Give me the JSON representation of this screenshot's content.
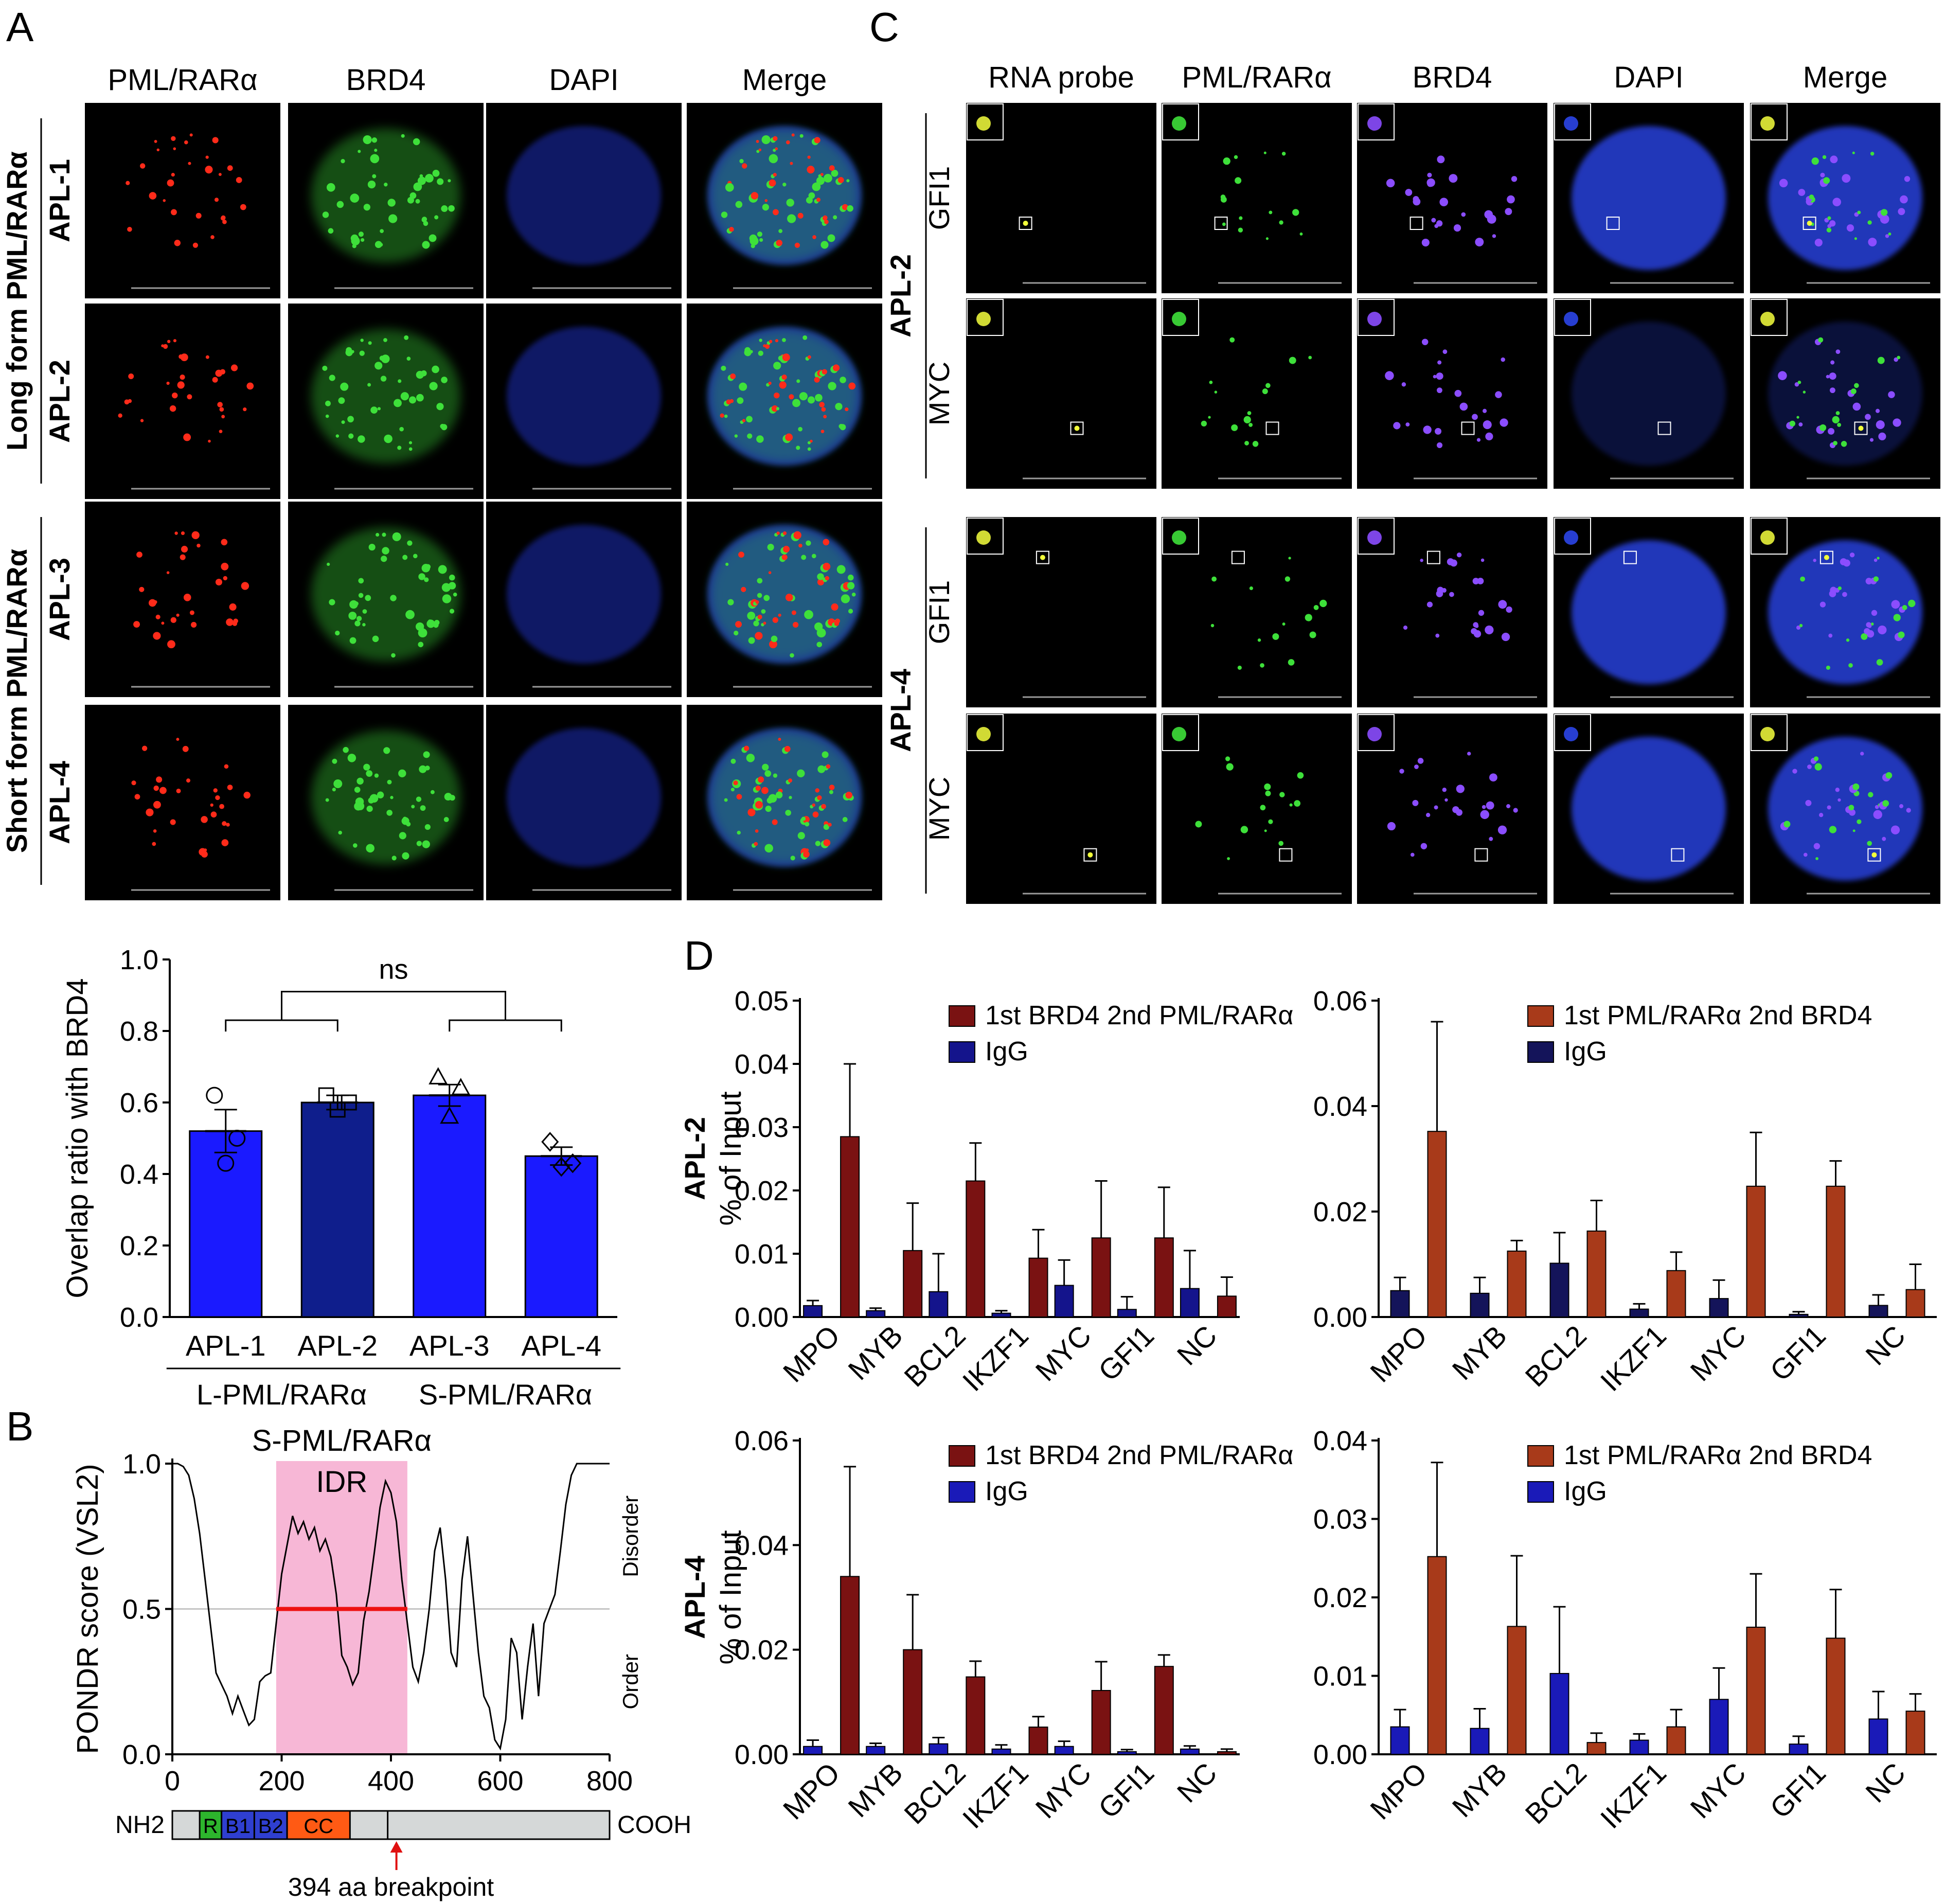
{
  "panel_letters": {
    "a": "A",
    "b": "B",
    "c": "C",
    "d": "D"
  },
  "panel_a": {
    "columns": [
      "PML/RARα",
      "BRD4",
      "DAPI",
      "Merge"
    ],
    "rows": [
      "APL-1",
      "APL-2",
      "APL-3",
      "APL-4"
    ],
    "groups": [
      "Long form PML/RARα",
      "Short form PML/RARα"
    ],
    "channel_colors": {
      "pml": "#ff2b1a",
      "brd4": "#3ee03a",
      "dapi": "#1f2fb8"
    }
  },
  "panel_a_chart": {
    "ylabel": "Overlap ratio with BRD4",
    "significance": "ns",
    "group_labels": [
      "L-PML/RARα",
      "S-PML/RARα"
    ]
  },
  "panel_b": {
    "ylabel": "PONDR score (VSL2)",
    "region_title": "S-PML/RARα",
    "region_label": "IDR",
    "side_top": "Disorder",
    "side_bottom": "Order",
    "nterm": "NH2",
    "cterm": "COOH",
    "domains": [
      {
        "label": "R",
        "start": 50,
        "end": 90,
        "color": "#2db52d"
      },
      {
        "label": "B1",
        "start": 90,
        "end": 150,
        "color": "#2f3fd0"
      },
      {
        "label": "B2",
        "start": 150,
        "end": 210,
        "color": "#2f3fd0"
      },
      {
        "label": "CC",
        "start": 210,
        "end": 325,
        "color": "#ff5a14"
      }
    ],
    "breakpoint_label": "394 aa breakpoint"
  },
  "panel_c": {
    "columns": [
      "RNA probe",
      "PML/RARα",
      "BRD4",
      "DAPI",
      "Merge"
    ],
    "groups": [
      "APL-2",
      "APL-4"
    ],
    "rows": [
      "GFI1",
      "MYC",
      "GFI1",
      "MYC"
    ]
  },
  "panel_d": {
    "ylabel": "% of Input",
    "row_labels": [
      "APL-2",
      "APL-4"
    ]
  },
  "chart_data": [
    {
      "type": "bar",
      "panel": "A",
      "ylabel": "Overlap ratio with BRD4",
      "categories": [
        "APL-1",
        "APL-2",
        "APL-3",
        "APL-4"
      ],
      "values": [
        0.52,
        0.6,
        0.62,
        0.45
      ],
      "errors": [
        0.06,
        0.02,
        0.03,
        0.025
      ],
      "colors": [
        "#1a1aff",
        "#0f1e8c",
        "#1a1aff",
        "#1a1aff"
      ],
      "points": [
        [
          0.62,
          0.5,
          0.43
        ],
        [
          0.62,
          0.6,
          0.58
        ],
        [
          0.67,
          0.64,
          0.56
        ],
        [
          0.49,
          0.43,
          0.42
        ]
      ],
      "markers": [
        "circle",
        "square",
        "triangle",
        "diamond"
      ],
      "ylim": [
        0,
        1.0
      ],
      "yticks": [
        "0.0",
        "0.2",
        "0.4",
        "0.6",
        "0.8",
        "1.0"
      ]
    },
    {
      "type": "line",
      "panel": "B",
      "ylabel": "PONDR score (VSL2)",
      "xlim": [
        0,
        800
      ],
      "ylim": [
        0,
        1
      ],
      "xticks": [
        "0",
        "200",
        "400",
        "600",
        "800"
      ],
      "yticks": [
        "0.0",
        "0.5",
        "1.0"
      ],
      "threshold": 0.5,
      "shaded_region": [
        190,
        430
      ],
      "threshold_segment": [
        190,
        430
      ],
      "x": [
        0,
        10,
        20,
        30,
        40,
        50,
        60,
        70,
        80,
        90,
        100,
        110,
        120,
        130,
        140,
        150,
        160,
        170,
        180,
        190,
        200,
        210,
        220,
        230,
        240,
        250,
        260,
        270,
        280,
        290,
        300,
        310,
        320,
        330,
        340,
        350,
        360,
        370,
        380,
        390,
        400,
        410,
        420,
        430,
        440,
        450,
        460,
        470,
        480,
        490,
        500,
        510,
        520,
        530,
        540,
        550,
        560,
        570,
        580,
        590,
        600,
        610,
        620,
        630,
        640,
        650,
        660,
        670,
        680,
        690,
        700,
        710,
        720,
        730,
        740,
        750,
        760,
        770,
        780,
        790,
        800
      ],
      "y": [
        1.0,
        1.0,
        0.99,
        0.96,
        0.88,
        0.76,
        0.6,
        0.44,
        0.28,
        0.24,
        0.2,
        0.14,
        0.2,
        0.15,
        0.1,
        0.12,
        0.25,
        0.27,
        0.28,
        0.45,
        0.62,
        0.72,
        0.82,
        0.76,
        0.8,
        0.74,
        0.78,
        0.7,
        0.74,
        0.68,
        0.55,
        0.34,
        0.3,
        0.24,
        0.28,
        0.46,
        0.56,
        0.7,
        0.85,
        0.94,
        0.9,
        0.8,
        0.6,
        0.45,
        0.3,
        0.25,
        0.35,
        0.5,
        0.7,
        0.78,
        0.6,
        0.35,
        0.3,
        0.6,
        0.75,
        0.55,
        0.35,
        0.2,
        0.16,
        0.05,
        0.02,
        0.12,
        0.4,
        0.35,
        0.12,
        0.3,
        0.45,
        0.2,
        0.45,
        0.5,
        0.55,
        0.7,
        0.86,
        0.96,
        1.0,
        1.0,
        1.0,
        1.0,
        1.0,
        1.0,
        1.0
      ]
    },
    {
      "type": "bar",
      "panel": "D",
      "position": "APL-2 left",
      "categories": [
        "MPO",
        "MYB",
        "BCL2",
        "IKZF1",
        "MYC",
        "GFI1",
        "NC"
      ],
      "ylim": [
        0,
        0.05
      ],
      "yticks": [
        "0.00",
        "0.01",
        "0.02",
        "0.03",
        "0.04",
        "0.05"
      ],
      "series": [
        {
          "name": "IgG",
          "values": [
            0.0018,
            0.001,
            0.004,
            0.0006,
            0.005,
            0.0012,
            0.0045
          ],
          "errors": [
            0.0008,
            0.0004,
            0.006,
            0.0004,
            0.004,
            0.002,
            0.006
          ],
          "color": "#14148c"
        },
        {
          "name": "1st BRD4 2nd PML/RARα",
          "values": [
            0.0285,
            0.0105,
            0.0215,
            0.0093,
            0.0125,
            0.0125,
            0.0033
          ],
          "errors": [
            0.0115,
            0.0075,
            0.006,
            0.0045,
            0.009,
            0.008,
            0.003
          ],
          "color": "#7a1212"
        }
      ]
    },
    {
      "type": "bar",
      "panel": "D",
      "position": "APL-2 right",
      "categories": [
        "MPO",
        "MYB",
        "BCL2",
        "IKZF1",
        "MYC",
        "GFI1",
        "NC"
      ],
      "ylim": [
        0,
        0.06
      ],
      "yticks": [
        "0.00",
        "0.02",
        "0.04",
        "0.06"
      ],
      "series": [
        {
          "name": "IgG",
          "values": [
            0.005,
            0.0045,
            0.0102,
            0.0015,
            0.0035,
            0.0005,
            0.0022
          ],
          "errors": [
            0.0025,
            0.003,
            0.0058,
            0.001,
            0.0035,
            0.0005,
            0.002
          ],
          "color": "#14145a"
        },
        {
          "name": "1st PML/RARα 2nd BRD4",
          "values": [
            0.0352,
            0.0125,
            0.0163,
            0.0088,
            0.0248,
            0.0248,
            0.0052
          ],
          "errors": [
            0.0208,
            0.002,
            0.0058,
            0.0035,
            0.0102,
            0.0048,
            0.0048
          ],
          "color": "#a83a1a"
        }
      ]
    },
    {
      "type": "bar",
      "panel": "D",
      "position": "APL-4 left",
      "categories": [
        "MPO",
        "MYB",
        "BCL2",
        "IKZF1",
        "MYC",
        "GFI1",
        "NC"
      ],
      "ylim": [
        0,
        0.06
      ],
      "yticks": [
        "0.00",
        "0.02",
        "0.04",
        "0.06"
      ],
      "series": [
        {
          "name": "IgG",
          "values": [
            0.0015,
            0.0015,
            0.002,
            0.001,
            0.0015,
            0.0005,
            0.001
          ],
          "errors": [
            0.0012,
            0.0006,
            0.0012,
            0.0008,
            0.001,
            0.0004,
            0.0006
          ],
          "color": "#1a1ab8"
        },
        {
          "name": "1st BRD4 2nd PML/RARα",
          "values": [
            0.034,
            0.02,
            0.0148,
            0.0052,
            0.0122,
            0.0168,
            0.0005
          ],
          "errors": [
            0.021,
            0.0105,
            0.003,
            0.002,
            0.0055,
            0.0022,
            0.0005
          ],
          "color": "#7a1212"
        }
      ]
    },
    {
      "type": "bar",
      "panel": "D",
      "position": "APL-4 right",
      "categories": [
        "MPO",
        "MYB",
        "BCL2",
        "IKZF1",
        "MYC",
        "GFI1",
        "NC"
      ],
      "ylim": [
        0,
        0.04
      ],
      "yticks": [
        "0.00",
        "0.01",
        "0.02",
        "0.03",
        "0.04"
      ],
      "series": [
        {
          "name": "IgG",
          "values": [
            0.0035,
            0.0033,
            0.0103,
            0.0018,
            0.007,
            0.0013,
            0.0045
          ],
          "errors": [
            0.0022,
            0.0025,
            0.0085,
            0.0008,
            0.004,
            0.001,
            0.0035
          ],
          "color": "#1a1ab8"
        },
        {
          "name": "1st PML/RARα 2nd BRD4",
          "values": [
            0.0252,
            0.0163,
            0.0015,
            0.0035,
            0.0162,
            0.0148,
            0.0055
          ],
          "errors": [
            0.012,
            0.009,
            0.0012,
            0.0022,
            0.0068,
            0.0062,
            0.0022
          ],
          "color": "#a83a1a"
        }
      ]
    }
  ]
}
